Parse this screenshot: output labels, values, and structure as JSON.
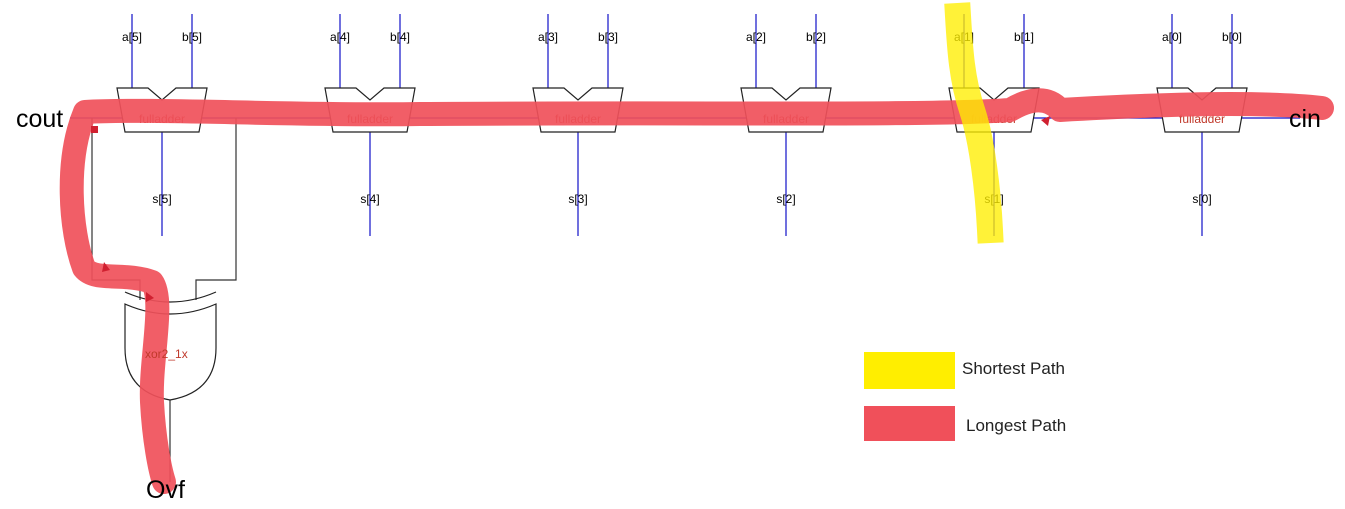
{
  "ports": {
    "cout": "cout",
    "cin": "cin",
    "ovf": "Ovf"
  },
  "adders": [
    {
      "block": "fulladder",
      "a": "a[5]",
      "b": "b[5]",
      "s": "s[5]"
    },
    {
      "block": "fulladder",
      "a": "a[4]",
      "b": "b[4]",
      "s": "s[4]"
    },
    {
      "block": "fulladder",
      "a": "a[3]",
      "b": "b[3]",
      "s": "s[3]"
    },
    {
      "block": "fulladder",
      "a": "a[2]",
      "b": "b[2]",
      "s": "s[2]"
    },
    {
      "block": "fulladder",
      "a": "a[1]",
      "b": "b[1]",
      "s": "s[1]"
    },
    {
      "block": "fulladder",
      "a": "a[0]",
      "b": "b[0]",
      "s": "s[0]"
    }
  ],
  "xor_gate": {
    "label": "xor2_1x"
  },
  "legend": [
    {
      "label": "Shortest Path",
      "color": "#ffee00"
    },
    {
      "label": "Longest Path",
      "color": "#f0505a"
    }
  ],
  "colors": {
    "wire": "#1010c8",
    "block_text": "#c0392b"
  }
}
